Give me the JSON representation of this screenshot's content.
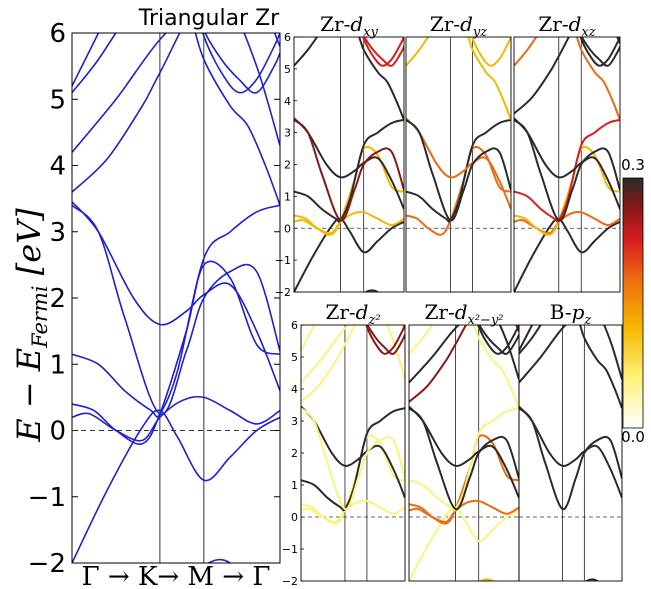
{
  "chart_data": [
    {
      "type": "line",
      "title": "Triangular Zr",
      "ylabel": "E − E_Fermi [eV]",
      "ylabel_parts": {
        "main": "E − E",
        "sub": "Fermi",
        "unit": " [eV]"
      },
      "ylim": [
        -2,
        6
      ],
      "yticks": [
        -2,
        -1,
        0,
        1,
        2,
        3,
        4,
        5,
        6
      ],
      "kpath": [
        "Γ",
        "K",
        "M",
        "Γ"
      ],
      "kpath_label": "Γ  → K→ M → Γ",
      "kpoints": [
        0,
        1,
        1.5,
        2.366
      ],
      "fermi_level": 0,
      "line_color": "#1f1fd6",
      "bands": [
        {
          "x": [
            0,
            0.4,
            0.8,
            1.0,
            1.2,
            1.5,
            1.8,
            2.1,
            2.366
          ],
          "y": [
            -2.0,
            -0.9,
            0.05,
            0.3,
            -0.1,
            -0.75,
            -0.4,
            0.0,
            0.2
          ]
        },
        {
          "x": [
            0,
            0.2,
            0.5,
            0.8,
            1.0,
            1.25,
            1.5,
            1.8,
            2.1,
            2.366
          ],
          "y": [
            0.2,
            0.25,
            0.0,
            -0.15,
            0.2,
            0.45,
            0.5,
            0.3,
            0.1,
            0.3
          ]
        },
        {
          "x": [
            0,
            0.25,
            0.5,
            0.8,
            1.0,
            1.3,
            1.5,
            1.8,
            2.1,
            2.366
          ],
          "y": [
            0.4,
            0.3,
            0.0,
            -0.2,
            0.25,
            1.5,
            2.5,
            2.3,
            1.3,
            1.15
          ]
        },
        {
          "x": [
            0,
            0.3,
            0.6,
            0.9,
            1.0,
            1.2,
            1.5,
            1.8,
            2.1,
            2.366
          ],
          "y": [
            1.15,
            1.0,
            0.6,
            0.3,
            0.25,
            0.9,
            2.6,
            3.0,
            3.3,
            3.4
          ]
        },
        {
          "x": [
            0,
            0.3,
            0.7,
            1.0,
            1.3,
            1.5,
            1.8,
            2.1,
            2.366
          ],
          "y": [
            3.45,
            3.0,
            2.0,
            1.6,
            1.8,
            2.05,
            2.2,
            1.5,
            0.6
          ]
        },
        {
          "x": [
            0,
            0.3,
            0.6,
            1.0,
            1.3,
            1.5,
            1.8,
            2.1,
            2.366
          ],
          "y": [
            3.4,
            3.0,
            1.7,
            0.25,
            1.2,
            2.0,
            2.4,
            2.4,
            1.2
          ]
        },
        {
          "x": [
            0,
            0.4,
            0.8,
            1.0,
            1.5,
            2.0,
            2.366
          ],
          "y": [
            3.6,
            4.1,
            4.9,
            5.4,
            6.6,
            6.8,
            5.8
          ]
        },
        {
          "x": [
            0,
            0.5,
            1.0,
            1.5,
            1.8,
            2.1,
            2.366
          ],
          "y": [
            4.2,
            5.0,
            5.9,
            6.5,
            6.4,
            5.5,
            4.3
          ]
        },
        {
          "x": [
            0,
            0.3,
            0.7,
            1.0,
            1.3,
            1.5,
            1.8,
            2.0,
            2.2,
            2.366
          ],
          "y": [
            5.1,
            5.6,
            6.4,
            6.8,
            6.4,
            5.6,
            4.9,
            4.6,
            4.0,
            3.4
          ]
        },
        {
          "x": [
            0,
            0.3,
            0.6,
            0.8,
            1.0
          ],
          "y": [
            5.2,
            6.0,
            6.8,
            7.0,
            7.0
          ]
        },
        {
          "x": [
            1.4,
            1.5,
            1.7,
            1.9,
            2.1,
            2.3,
            2.366
          ],
          "y": [
            6.5,
            5.95,
            5.4,
            5.1,
            5.3,
            5.8,
            6.0
          ]
        },
        {
          "x": [
            1.4,
            1.5,
            1.7,
            1.9,
            2.1,
            2.3,
            2.366
          ],
          "y": [
            6.6,
            6.05,
            5.6,
            5.3,
            5.1,
            5.5,
            5.7
          ]
        },
        {
          "x": [
            1.4,
            1.5,
            1.7,
            1.9,
            2.1,
            2.366
          ],
          "y": [
            -2.3,
            -2.05,
            -1.95,
            -2.1,
            -2.4,
            -2.8
          ]
        }
      ]
    },
    {
      "type": "line",
      "subtype": "projected-bands-grid",
      "panels": [
        {
          "title_main": "Zr-",
          "title_sym": "d",
          "title_sub": "xy",
          "ylim": [
            -2,
            6
          ],
          "yticks": [
            -2,
            -1,
            0,
            1,
            2,
            3,
            4,
            5,
            6
          ]
        },
        {
          "title_main": "Zr-",
          "title_sym": "d",
          "title_sub": "yz",
          "ylim": [
            -2,
            6
          ],
          "yticks": []
        },
        {
          "title_main": "Zr-",
          "title_sym": "d",
          "title_sub": "xz",
          "ylim": [
            -2,
            6
          ],
          "yticks": []
        },
        {
          "title_main": "Zr-",
          "title_sym": "d",
          "title_sub": "z²",
          "ylim": [
            -2,
            6
          ],
          "yticks": [
            -2,
            -1,
            0,
            1,
            2,
            3,
            4,
            5,
            6
          ]
        },
        {
          "title_main": "Zr-",
          "title_sym": "d",
          "title_sub": "x²−y²",
          "ylim": [
            -2,
            6
          ],
          "yticks": []
        },
        {
          "title_main": "B-",
          "title_sym": "p",
          "title_sub": "z",
          "ylim": [
            -2,
            6
          ],
          "yticks": []
        }
      ],
      "colorbar": {
        "min": 0.0,
        "max": 0.3,
        "min_label": "0.0",
        "max_label": "0.3",
        "colors": [
          "#ffffff",
          "#fff27a",
          "#f5b800",
          "#ee6a10",
          "#d81e1e",
          "#8a1818",
          "#2b2b2b"
        ]
      }
    }
  ]
}
